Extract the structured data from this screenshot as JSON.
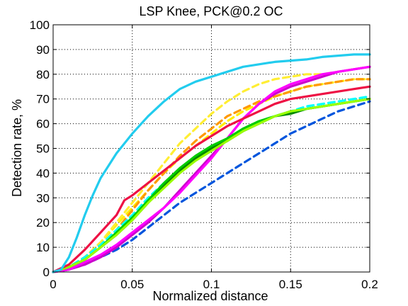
{
  "chart_data": {
    "type": "line",
    "title": "LSP Knee, PCK@0.2 OC",
    "xlabel": "Normalized distance",
    "ylabel": "Detection rate, %",
    "xlim": [
      0,
      0.2
    ],
    "ylim": [
      0,
      100
    ],
    "grid": true,
    "x_ticks": [
      0,
      0.05,
      0.1,
      0.15,
      0.2
    ],
    "x_tick_labels": [
      "0",
      "0.05",
      "0.1",
      "0.15",
      "0.2"
    ],
    "y_ticks": [
      0,
      10,
      20,
      30,
      40,
      50,
      60,
      70,
      80,
      90,
      100
    ],
    "y_tick_labels": [
      "0",
      "10",
      "20",
      "30",
      "40",
      "50",
      "60",
      "70",
      "80",
      "90",
      "100"
    ],
    "series": [
      {
        "color": "#0055dd",
        "dash": "dashed",
        "points": [
          [
            0,
            0
          ],
          [
            0.01,
            1
          ],
          [
            0.02,
            3
          ],
          [
            0.03,
            6
          ],
          [
            0.04,
            9
          ],
          [
            0.05,
            13
          ],
          [
            0.06,
            18
          ],
          [
            0.07,
            23
          ],
          [
            0.08,
            28
          ],
          [
            0.09,
            32
          ],
          [
            0.1,
            36
          ],
          [
            0.11,
            40
          ],
          [
            0.12,
            44
          ],
          [
            0.13,
            48
          ],
          [
            0.14,
            52
          ],
          [
            0.15,
            56
          ],
          [
            0.16,
            59
          ],
          [
            0.17,
            62
          ],
          [
            0.18,
            65
          ],
          [
            0.19,
            67
          ],
          [
            0.2,
            69
          ]
        ]
      },
      {
        "color": "#ffee00",
        "dash": "dashed",
        "points": [
          [
            0,
            0
          ],
          [
            0.01,
            2
          ],
          [
            0.02,
            6
          ],
          [
            0.03,
            12
          ],
          [
            0.04,
            19
          ],
          [
            0.05,
            26
          ],
          [
            0.06,
            33
          ],
          [
            0.07,
            40
          ],
          [
            0.08,
            46
          ],
          [
            0.09,
            51
          ],
          [
            0.1,
            56
          ],
          [
            0.11,
            61
          ],
          [
            0.12,
            65
          ],
          [
            0.13,
            68
          ],
          [
            0.14,
            71
          ],
          [
            0.15,
            73
          ],
          [
            0.16,
            75
          ],
          [
            0.17,
            76
          ],
          [
            0.18,
            77
          ],
          [
            0.19,
            78
          ],
          [
            0.2,
            78
          ]
        ]
      },
      {
        "color": "#ffee33",
        "dash": "dashed",
        "points": [
          [
            0,
            0
          ],
          [
            0.01,
            2
          ],
          [
            0.02,
            6
          ],
          [
            0.03,
            12
          ],
          [
            0.04,
            20
          ],
          [
            0.05,
            28
          ],
          [
            0.06,
            36
          ],
          [
            0.07,
            44
          ],
          [
            0.08,
            52
          ],
          [
            0.09,
            58
          ],
          [
            0.1,
            64
          ],
          [
            0.11,
            69
          ],
          [
            0.12,
            73
          ],
          [
            0.13,
            76
          ],
          [
            0.14,
            78
          ],
          [
            0.15,
            79
          ],
          [
            0.16,
            80
          ],
          [
            0.17,
            80
          ],
          [
            0.18,
            81
          ],
          [
            0.19,
            82
          ],
          [
            0.2,
            83
          ]
        ]
      },
      {
        "color": "#ff9900",
        "dash": "dashed",
        "points": [
          [
            0,
            0
          ],
          [
            0.01,
            2
          ],
          [
            0.02,
            6
          ],
          [
            0.03,
            11
          ],
          [
            0.04,
            17
          ],
          [
            0.05,
            25
          ],
          [
            0.06,
            33
          ],
          [
            0.07,
            40
          ],
          [
            0.08,
            47
          ],
          [
            0.09,
            53
          ],
          [
            0.1,
            58
          ],
          [
            0.11,
            63
          ],
          [
            0.12,
            66
          ],
          [
            0.13,
            69
          ],
          [
            0.14,
            71
          ],
          [
            0.15,
            73
          ],
          [
            0.16,
            75
          ],
          [
            0.17,
            76
          ],
          [
            0.18,
            77
          ],
          [
            0.19,
            78
          ],
          [
            0.2,
            78
          ]
        ]
      },
      {
        "color": "#00ffff",
        "dash": "dashed",
        "points": [
          [
            0,
            0
          ],
          [
            0.01,
            2
          ],
          [
            0.02,
            6
          ],
          [
            0.03,
            11
          ],
          [
            0.04,
            17
          ],
          [
            0.05,
            23
          ],
          [
            0.06,
            30
          ],
          [
            0.07,
            36
          ],
          [
            0.08,
            41
          ],
          [
            0.09,
            46
          ],
          [
            0.1,
            50
          ],
          [
            0.11,
            54
          ],
          [
            0.12,
            58
          ],
          [
            0.13,
            61
          ],
          [
            0.14,
            63
          ],
          [
            0.15,
            65
          ],
          [
            0.16,
            67
          ],
          [
            0.17,
            68
          ],
          [
            0.18,
            69
          ],
          [
            0.19,
            70
          ],
          [
            0.2,
            71
          ]
        ]
      },
      {
        "color": "#cc00cc",
        "dash": "solid",
        "points": [
          [
            0,
            0
          ],
          [
            0.01,
            1
          ],
          [
            0.02,
            3
          ],
          [
            0.03,
            6
          ],
          [
            0.04,
            10
          ],
          [
            0.05,
            15
          ],
          [
            0.06,
            20
          ],
          [
            0.07,
            26
          ],
          [
            0.08,
            33
          ],
          [
            0.09,
            40
          ],
          [
            0.1,
            47
          ],
          [
            0.11,
            54
          ],
          [
            0.12,
            62
          ],
          [
            0.13,
            68
          ],
          [
            0.14,
            72
          ],
          [
            0.15,
            75
          ],
          [
            0.16,
            77
          ],
          [
            0.17,
            79
          ],
          [
            0.18,
            81
          ],
          [
            0.19,
            82
          ],
          [
            0.2,
            83
          ]
        ]
      },
      {
        "color": "#ff00ff",
        "dash": "solid",
        "points": [
          [
            0,
            0
          ],
          [
            0.01,
            1
          ],
          [
            0.02,
            4
          ],
          [
            0.03,
            7
          ],
          [
            0.04,
            11
          ],
          [
            0.05,
            16
          ],
          [
            0.06,
            21
          ],
          [
            0.07,
            26
          ],
          [
            0.08,
            32
          ],
          [
            0.09,
            39
          ],
          [
            0.1,
            46
          ],
          [
            0.11,
            54
          ],
          [
            0.12,
            62
          ],
          [
            0.13,
            68
          ],
          [
            0.14,
            73
          ],
          [
            0.15,
            76
          ],
          [
            0.16,
            78
          ],
          [
            0.17,
            80
          ],
          [
            0.18,
            81
          ],
          [
            0.19,
            82
          ],
          [
            0.2,
            83
          ]
        ]
      },
      {
        "color": "#008800",
        "dash": "solid",
        "points": [
          [
            0,
            0
          ],
          [
            0.01,
            2
          ],
          [
            0.02,
            5
          ],
          [
            0.03,
            10
          ],
          [
            0.04,
            15
          ],
          [
            0.05,
            21
          ],
          [
            0.06,
            28
          ],
          [
            0.07,
            35
          ],
          [
            0.08,
            41
          ],
          [
            0.09,
            46
          ],
          [
            0.1,
            50
          ],
          [
            0.11,
            53
          ],
          [
            0.12,
            57
          ],
          [
            0.13,
            60
          ],
          [
            0.14,
            63
          ],
          [
            0.15,
            64
          ],
          [
            0.16,
            66
          ],
          [
            0.17,
            67
          ],
          [
            0.18,
            68
          ],
          [
            0.19,
            69
          ],
          [
            0.2,
            70
          ]
        ]
      },
      {
        "color": "#00cc00",
        "dash": "solid",
        "points": [
          [
            0,
            0
          ],
          [
            0.01,
            2
          ],
          [
            0.02,
            5
          ],
          [
            0.03,
            10
          ],
          [
            0.04,
            16
          ],
          [
            0.05,
            22
          ],
          [
            0.06,
            29
          ],
          [
            0.07,
            36
          ],
          [
            0.08,
            42
          ],
          [
            0.09,
            47
          ],
          [
            0.1,
            51
          ],
          [
            0.11,
            54
          ],
          [
            0.12,
            58
          ],
          [
            0.13,
            61
          ],
          [
            0.14,
            63
          ],
          [
            0.15,
            65
          ],
          [
            0.16,
            66
          ],
          [
            0.17,
            67
          ],
          [
            0.18,
            68
          ],
          [
            0.19,
            69
          ],
          [
            0.2,
            70
          ]
        ]
      },
      {
        "color": "#99ff00",
        "dash": "solid",
        "points": [
          [
            0,
            0
          ],
          [
            0.01,
            2
          ],
          [
            0.02,
            5
          ],
          [
            0.03,
            10
          ],
          [
            0.04,
            15
          ],
          [
            0.05,
            21
          ],
          [
            0.06,
            28
          ],
          [
            0.07,
            34
          ],
          [
            0.08,
            40
          ],
          [
            0.09,
            45
          ],
          [
            0.1,
            49
          ],
          [
            0.11,
            53
          ],
          [
            0.12,
            57
          ],
          [
            0.13,
            60
          ],
          [
            0.14,
            63
          ],
          [
            0.15,
            65
          ],
          [
            0.16,
            66
          ],
          [
            0.17,
            67
          ],
          [
            0.18,
            68
          ],
          [
            0.19,
            69
          ],
          [
            0.2,
            70
          ]
        ]
      },
      {
        "color": "#ee1144",
        "dash": "solid",
        "points": [
          [
            0,
            0
          ],
          [
            0.01,
            3
          ],
          [
            0.02,
            9
          ],
          [
            0.03,
            16
          ],
          [
            0.04,
            23
          ],
          [
            0.045,
            29
          ],
          [
            0.05,
            31
          ],
          [
            0.06,
            36
          ],
          [
            0.07,
            41
          ],
          [
            0.08,
            46
          ],
          [
            0.09,
            51
          ],
          [
            0.1,
            55
          ],
          [
            0.11,
            59
          ],
          [
            0.12,
            62
          ],
          [
            0.13,
            65
          ],
          [
            0.14,
            68
          ],
          [
            0.15,
            70
          ],
          [
            0.16,
            71
          ],
          [
            0.17,
            72
          ],
          [
            0.18,
            73
          ],
          [
            0.19,
            74
          ],
          [
            0.2,
            75
          ]
        ]
      },
      {
        "color": "#22ccee",
        "dash": "solid",
        "points": [
          [
            0,
            0
          ],
          [
            0.005,
            1
          ],
          [
            0.01,
            6
          ],
          [
            0.015,
            14
          ],
          [
            0.02,
            23
          ],
          [
            0.025,
            31
          ],
          [
            0.03,
            38
          ],
          [
            0.04,
            48
          ],
          [
            0.05,
            56
          ],
          [
            0.06,
            63
          ],
          [
            0.07,
            69
          ],
          [
            0.08,
            74
          ],
          [
            0.09,
            77
          ],
          [
            0.1,
            79
          ],
          [
            0.11,
            81
          ],
          [
            0.12,
            83
          ],
          [
            0.13,
            84
          ],
          [
            0.14,
            85
          ],
          [
            0.15,
            85.5
          ],
          [
            0.16,
            86
          ],
          [
            0.17,
            87
          ],
          [
            0.18,
            87.5
          ],
          [
            0.19,
            88
          ],
          [
            0.2,
            88
          ]
        ]
      }
    ]
  }
}
